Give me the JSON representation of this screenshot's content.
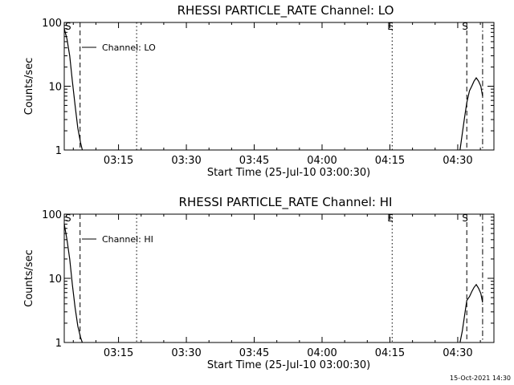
{
  "chart_data": [
    {
      "type": "line",
      "title": "RHESSI PARTICLE_RATE Channel: LO",
      "xlabel": "Start Time (25-Jul-10 03:00:30)",
      "ylabel": "Counts/sec",
      "yscale": "log",
      "ylim": [
        1,
        100
      ],
      "xlim_minutes": [
        3.0,
        98.0
      ],
      "x_ticks": [
        {
          "label": "03:15",
          "minutes": 15
        },
        {
          "label": "03:30",
          "minutes": 30
        },
        {
          "label": "03:45",
          "minutes": 45
        },
        {
          "label": "04:00",
          "minutes": 60
        },
        {
          "label": "04:15",
          "minutes": 75
        },
        {
          "label": "04:30",
          "minutes": 90
        }
      ],
      "y_ticks": [
        {
          "label": "1",
          "value": 1
        },
        {
          "label": "10",
          "value": 10
        },
        {
          "label": "100",
          "value": 100
        }
      ],
      "legend": {
        "placement": "top-left",
        "text": "Channel: LO"
      },
      "markers": [
        {
          "label": "S",
          "minutes": 3.0,
          "style": "dashed",
          "show_line": false
        },
        {
          "label": "",
          "minutes": 6.5,
          "style": "dashed",
          "show_line": true
        },
        {
          "label": "",
          "minutes": 19.0,
          "style": "dotted",
          "show_line": true
        },
        {
          "label": "E",
          "minutes": 75.5,
          "style": "dotted",
          "show_line": true
        },
        {
          "label": "S",
          "minutes": 92.0,
          "style": "dashed",
          "show_line": true
        },
        {
          "label": "",
          "minutes": 95.5,
          "style": "dashdot",
          "show_line": true
        }
      ],
      "series": [
        {
          "segments": [
            {
              "x": [
                3.0,
                3.6,
                4.2,
                4.8,
                5.4,
                6.0,
                6.6,
                7.0
              ],
              "y": [
                80,
                55,
                30,
                12,
                5,
                2.2,
                1.3,
                1.0
              ]
            },
            {
              "x": [
                90.5,
                91.0,
                91.5,
                92.0,
                92.6,
                93.1,
                93.6,
                94.1,
                94.6,
                95.1,
                95.5
              ],
              "y": [
                1.0,
                1.8,
                3.2,
                5.5,
                8.5,
                10,
                12,
                13.5,
                12,
                10,
                7
              ]
            }
          ]
        }
      ]
    },
    {
      "type": "line",
      "title": "RHESSI PARTICLE_RATE Channel: HI",
      "xlabel": "Start Time (25-Jul-10 03:00:30)",
      "ylabel": "Counts/sec",
      "yscale": "log",
      "ylim": [
        1,
        100
      ],
      "xlim_minutes": [
        3.0,
        98.0
      ],
      "x_ticks": [
        {
          "label": "03:15",
          "minutes": 15
        },
        {
          "label": "03:30",
          "minutes": 30
        },
        {
          "label": "03:45",
          "minutes": 45
        },
        {
          "label": "04:00",
          "minutes": 60
        },
        {
          "label": "04:15",
          "minutes": 75
        },
        {
          "label": "04:30",
          "minutes": 90
        }
      ],
      "y_ticks": [
        {
          "label": "1",
          "value": 1
        },
        {
          "label": "10",
          "value": 10
        },
        {
          "label": "100",
          "value": 100
        }
      ],
      "legend": {
        "placement": "top-left",
        "text": "Channel: HI"
      },
      "markers": [
        {
          "label": "S",
          "minutes": 3.0,
          "style": "dashed",
          "show_line": false
        },
        {
          "label": "",
          "minutes": 6.5,
          "style": "dashed",
          "show_line": true
        },
        {
          "label": "",
          "minutes": 19.0,
          "style": "dotted",
          "show_line": true
        },
        {
          "label": "E",
          "minutes": 75.5,
          "style": "dotted",
          "show_line": true
        },
        {
          "label": "S",
          "minutes": 92.0,
          "style": "dashed",
          "show_line": true
        },
        {
          "label": "",
          "minutes": 95.5,
          "style": "dashdot",
          "show_line": true
        }
      ],
      "series": [
        {
          "segments": [
            {
              "x": [
                3.0,
                3.6,
                4.2,
                4.8,
                5.4,
                6.0,
                6.6,
                7.0
              ],
              "y": [
                70,
                40,
                20,
                8,
                3.5,
                1.8,
                1.2,
                1.0
              ]
            },
            {
              "x": [
                90.5,
                91.0,
                91.5,
                92.0,
                92.6,
                93.1,
                93.6,
                94.1,
                94.6,
                95.1,
                95.5
              ],
              "y": [
                1.0,
                1.5,
                2.6,
                4.5,
                5.2,
                6.2,
                7.2,
                8.0,
                7.0,
                5.8,
                4.2
              ]
            }
          ]
        }
      ]
    }
  ],
  "footer": {
    "timestamp": "15-Oct-2021 14:30"
  }
}
